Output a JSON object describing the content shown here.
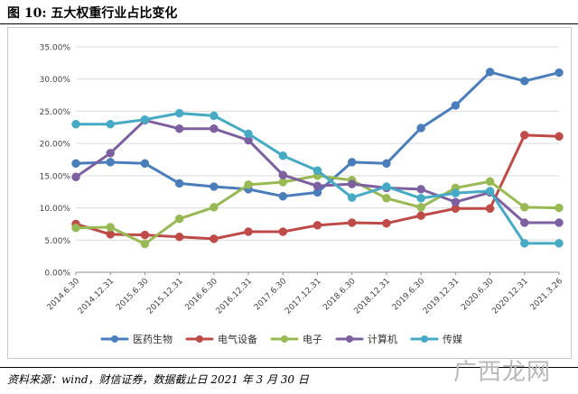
{
  "figure": {
    "title": "图 10:  五大权重行业占比变化",
    "source": "资料来源：wind，财信证券，数据截止日 2021 年 3 月 30 日",
    "watermark": "广西龙网"
  },
  "chart_data": {
    "type": "line",
    "title": "",
    "xlabel": "",
    "ylabel": "",
    "ylim": [
      0,
      35
    ],
    "yticks": [
      "0.00%",
      "5.00%",
      "10.00%",
      "15.00%",
      "20.00%",
      "25.00%",
      "30.00%",
      "35.00%"
    ],
    "grid": true,
    "legend_position": "bottom",
    "categories": [
      "2014.6.30",
      "2014.12.31",
      "2015.6.30",
      "2015.12.31",
      "2016.6.30",
      "2016.12.31",
      "2017.6.30",
      "2017.12.31",
      "2018.6.30",
      "2018.12.31",
      "2019.6.30",
      "2019.12.31",
      "2020.6.30",
      "2020.12.31",
      "2021.3.26"
    ],
    "series": [
      {
        "name": "医药生物",
        "color": "#4a7ebb",
        "values": [
          16.9,
          17.1,
          16.9,
          13.8,
          13.3,
          12.9,
          11.8,
          12.4,
          17.1,
          16.9,
          22.4,
          25.9,
          31.1,
          29.7,
          31.0
        ]
      },
      {
        "name": "电气设备",
        "color": "#be4b48",
        "values": [
          7.5,
          5.9,
          5.8,
          5.5,
          5.2,
          6.3,
          6.3,
          7.3,
          7.7,
          7.6,
          8.8,
          9.9,
          9.9,
          21.3,
          21.1
        ]
      },
      {
        "name": "电子",
        "color": "#98b954",
        "values": [
          6.9,
          7.0,
          4.4,
          8.3,
          10.1,
          13.6,
          14.0,
          15.0,
          14.3,
          11.5,
          10.1,
          13.1,
          14.1,
          10.1,
          10.0
        ]
      },
      {
        "name": "计算机",
        "color": "#7d60a0",
        "values": [
          14.8,
          18.5,
          23.6,
          22.3,
          22.3,
          20.5,
          15.1,
          13.4,
          13.7,
          13.1,
          12.9,
          10.9,
          12.4,
          7.7,
          7.7
        ]
      },
      {
        "name": "传媒",
        "color": "#46aac5",
        "values": [
          23.0,
          23.0,
          23.7,
          24.7,
          24.3,
          21.5,
          18.1,
          15.8,
          11.6,
          13.3,
          11.5,
          12.3,
          12.6,
          4.5,
          4.5
        ]
      }
    ]
  }
}
